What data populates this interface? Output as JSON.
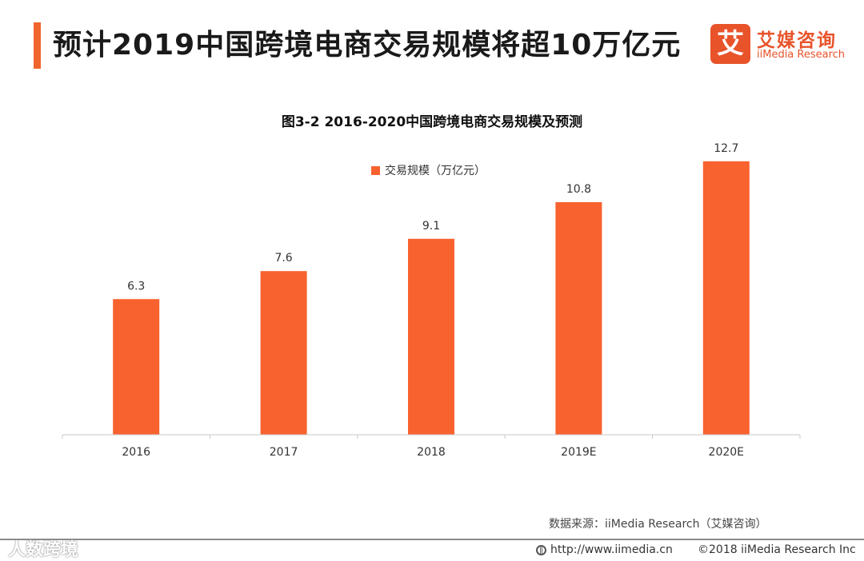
{
  "header": {
    "title": "预计2019中国跨境电商交易规模将超10万亿元"
  },
  "logo": {
    "mark": "艾",
    "name_cn": "艾媒咨询",
    "name_en": "iiMedia Research"
  },
  "chart_data": {
    "type": "bar",
    "title": "图3-2 2016-2020中国跨境电商交易规模及预测",
    "categories": [
      "2016",
      "2017",
      "2018",
      "2019E",
      "2020E"
    ],
    "series": [
      {
        "name": "交易规模（万亿元）",
        "values": [
          6.3,
          7.6,
          9.1,
          10.8,
          12.7
        ],
        "color": "#f8622f"
      }
    ],
    "ylim": [
      0,
      14.4
    ],
    "xlabel": "",
    "ylabel": "",
    "grid": false,
    "legend_position": "top-center",
    "data_labels": [
      "6.3",
      "7.6",
      "9.1",
      "10.8",
      "12.7"
    ]
  },
  "footer": {
    "source": "数据来源：iiMedia Research（艾媒咨询）",
    "watermark": "人数跨境",
    "url": "http://www.iimedia.cn",
    "copyright": "©2018 iiMedia Research Inc"
  },
  "colors": {
    "accent": "#f0642d",
    "bar": "#f8622f",
    "brand": "#e8532a"
  }
}
